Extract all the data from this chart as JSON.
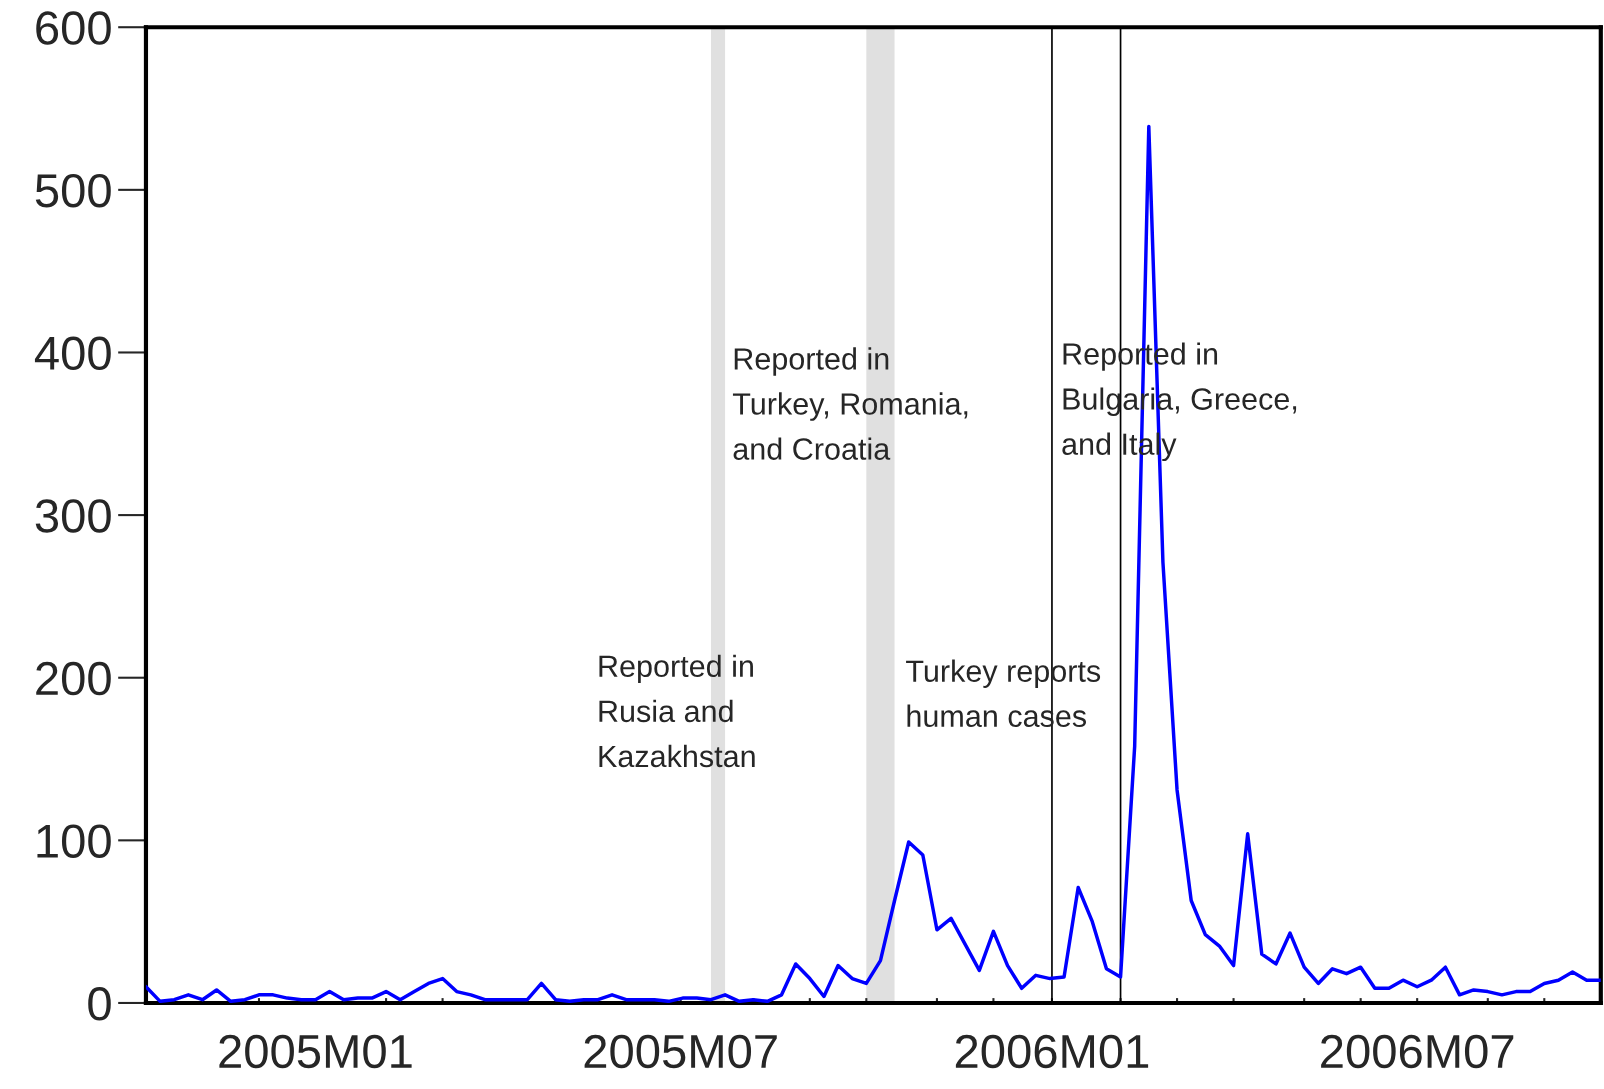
{
  "chart_data": {
    "type": "line",
    "x": [
      "2004-10-09",
      "2004-10-16",
      "2004-10-23",
      "2004-10-30",
      "2004-11-06",
      "2004-11-13",
      "2004-11-20",
      "2004-11-27",
      "2004-12-04",
      "2004-12-11",
      "2004-12-18",
      "2004-12-25",
      "2005-01-01",
      "2005-01-08",
      "2005-01-15",
      "2005-01-22",
      "2005-01-29",
      "2005-02-05",
      "2005-02-12",
      "2005-02-19",
      "2005-02-26",
      "2005-03-05",
      "2005-03-12",
      "2005-03-19",
      "2005-03-26",
      "2005-04-02",
      "2005-04-09",
      "2005-04-16",
      "2005-04-23",
      "2005-04-30",
      "2005-05-07",
      "2005-05-14",
      "2005-05-21",
      "2005-05-28",
      "2005-06-04",
      "2005-06-11",
      "2005-06-18",
      "2005-06-25",
      "2005-07-02",
      "2005-07-09",
      "2005-07-16",
      "2005-07-23",
      "2005-07-30",
      "2005-08-06",
      "2005-08-13",
      "2005-08-20",
      "2005-08-27",
      "2005-09-03",
      "2005-09-10",
      "2005-09-17",
      "2005-09-24",
      "2005-10-01",
      "2005-10-08",
      "2005-10-15",
      "2005-10-22",
      "2005-10-29",
      "2005-11-05",
      "2005-11-12",
      "2005-11-19",
      "2005-11-26",
      "2005-12-03",
      "2005-12-10",
      "2005-12-17",
      "2005-12-24",
      "2005-12-31",
      "2006-01-07",
      "2006-01-14",
      "2006-01-21",
      "2006-01-28",
      "2006-02-04",
      "2006-02-11",
      "2006-02-18",
      "2006-02-25",
      "2006-03-04",
      "2006-03-11",
      "2006-03-18",
      "2006-03-25",
      "2006-04-01",
      "2006-04-08",
      "2006-04-15",
      "2006-04-22",
      "2006-04-29",
      "2006-05-06",
      "2006-05-13",
      "2006-05-20",
      "2006-05-27",
      "2006-06-03",
      "2006-06-10",
      "2006-06-17",
      "2006-06-24",
      "2006-07-01",
      "2006-07-08",
      "2006-07-15",
      "2006-07-22",
      "2006-07-29",
      "2006-08-05",
      "2006-08-12",
      "2006-08-19",
      "2006-08-26",
      "2006-09-02",
      "2006-09-09",
      "2006-09-16",
      "2006-09-23",
      "2006-09-30"
    ],
    "series": [
      {
        "color": "#0000ff",
        "values": [
          10,
          1,
          2,
          5,
          2,
          8,
          1,
          2,
          5,
          5,
          3,
          2,
          2,
          7,
          2,
          3,
          3,
          7,
          2,
          7,
          12,
          15,
          7,
          5,
          2,
          2,
          2,
          2,
          12,
          2,
          1,
          2,
          2,
          5,
          2,
          2,
          2,
          1,
          3,
          3,
          2,
          5,
          1,
          2,
          1,
          5,
          24,
          15,
          4,
          23,
          15,
          12,
          26,
          63,
          99,
          91,
          45,
          52,
          36,
          20,
          44,
          23,
          9,
          17,
          15,
          16,
          71,
          50,
          21,
          16,
          158,
          539,
          271,
          131,
          63,
          42,
          35,
          23,
          104,
          30,
          24,
          43,
          22,
          12,
          21,
          18,
          22,
          9,
          9,
          14,
          10,
          14,
          22,
          5,
          8,
          7,
          5,
          7,
          7,
          12,
          14,
          19,
          14,
          14
        ]
      }
    ],
    "xlim": [
      "2004-10-09",
      "2006-09-30"
    ],
    "xticks": [
      {
        "value": "2004-11-06",
        "label": null
      },
      {
        "value": "2004-12-04",
        "label": null
      },
      {
        "value": "2005-01-01",
        "label": "2005M01"
      },
      {
        "value": "2005-02-05",
        "label": null
      },
      {
        "value": "2005-03-05",
        "label": null
      },
      {
        "value": "2005-04-02",
        "label": null
      },
      {
        "value": "2005-04-30",
        "label": null
      },
      {
        "value": "2005-06-04",
        "label": null
      },
      {
        "value": "2005-07-01",
        "label": "2005M07"
      },
      {
        "value": "2005-08-06",
        "label": null
      },
      {
        "value": "2005-09-03",
        "label": null
      },
      {
        "value": "2005-10-01",
        "label": null
      },
      {
        "value": "2005-11-05",
        "label": null
      },
      {
        "value": "2005-12-03",
        "label": null
      },
      {
        "value": "2006-01-01",
        "label": "2006M01"
      },
      {
        "value": "2006-02-04",
        "label": null
      },
      {
        "value": "2006-03-04",
        "label": null
      },
      {
        "value": "2006-04-01",
        "label": null
      },
      {
        "value": "2006-05-06",
        "label": null
      },
      {
        "value": "2006-06-03",
        "label": null
      },
      {
        "value": "2006-07-01",
        "label": "2006M07"
      },
      {
        "value": "2006-08-05",
        "label": null
      },
      {
        "value": "2006-09-02",
        "label": null
      }
    ],
    "ylim": [
      0,
      600
    ],
    "yticks": [
      0,
      100,
      200,
      300,
      400,
      500,
      600
    ],
    "grid": false,
    "legend": false,
    "bands": [
      {
        "axis": "x",
        "from": "2005-07-16",
        "to": "2005-07-23",
        "color": "#e0e0e0"
      },
      {
        "axis": "x",
        "from": "2005-10-01",
        "to": "2005-10-15",
        "color": "#e0e0e0"
      }
    ],
    "ref_lines": [
      {
        "axis": "x",
        "value": "2006-01-01",
        "color": "#000000"
      },
      {
        "axis": "x",
        "value": "2006-02-04",
        "color": "#000000"
      }
    ],
    "annotations": [
      "Reported in\nRusia and\nKazakhstan",
      "Reported in\nTurkey, Romania,\nand Croatia",
      "Turkey reports\nhuman cases",
      "Reported in\nBulgaria, Greece,\nand Italy"
    ]
  }
}
